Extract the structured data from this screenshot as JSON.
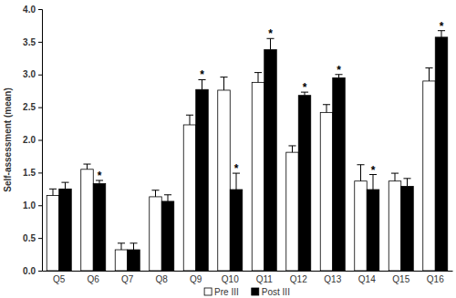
{
  "chart_data": {
    "type": "bar",
    "y_label": "Self-assessment (mean)",
    "categories": [
      "Q5",
      "Q6",
      "Q7",
      "Q8",
      "Q9",
      "Q10",
      "Q11",
      "Q12",
      "Q13",
      "Q14",
      "Q15",
      "Q16"
    ],
    "series": [
      {
        "name": "Pre III",
        "color": "#ffffff",
        "values": [
          1.15,
          1.55,
          0.32,
          1.13,
          2.23,
          2.76,
          2.88,
          1.81,
          2.42,
          1.37,
          1.37,
          2.9
        ],
        "errors": [
          0.1,
          0.08,
          0.1,
          0.1,
          0.15,
          0.2,
          0.15,
          0.1,
          0.12,
          0.25,
          0.12,
          0.2
        ]
      },
      {
        "name": "Post III",
        "color": "#000000",
        "values": [
          1.25,
          1.33,
          0.32,
          1.06,
          2.77,
          1.24,
          3.38,
          2.68,
          2.95,
          1.24,
          1.29,
          3.57
        ],
        "errors": [
          0.1,
          0.05,
          0.1,
          0.1,
          0.15,
          0.25,
          0.17,
          0.05,
          0.05,
          0.23,
          0.12,
          0.1
        ]
      }
    ],
    "annotations": [
      {
        "category": "Q6",
        "series": "Post III",
        "text": "*"
      },
      {
        "category": "Q9",
        "series": "Post III",
        "text": "*"
      },
      {
        "category": "Q10",
        "series": "Post III",
        "text": "*"
      },
      {
        "category": "Q11",
        "series": "Post III",
        "text": "*"
      },
      {
        "category": "Q12",
        "series": "Post III",
        "text": "*"
      },
      {
        "category": "Q13",
        "series": "Post III",
        "text": "*"
      },
      {
        "category": "Q14",
        "series": "Post III",
        "text": "*"
      },
      {
        "category": "Q16",
        "series": "Post III",
        "text": "*"
      }
    ],
    "ylim": [
      0,
      4
    ],
    "yticks": [
      {
        "value": 0,
        "label": "0.0"
      },
      0.5,
      {
        "value": 1,
        "label": "1.0"
      },
      1.5,
      {
        "value": 2,
        "label": "2.0"
      },
      2.5,
      {
        "value": 3,
        "label": "3.0"
      },
      3.5,
      {
        "value": 4,
        "label": "4.0"
      }
    ],
    "legend": "bottom",
    "grid": false
  }
}
